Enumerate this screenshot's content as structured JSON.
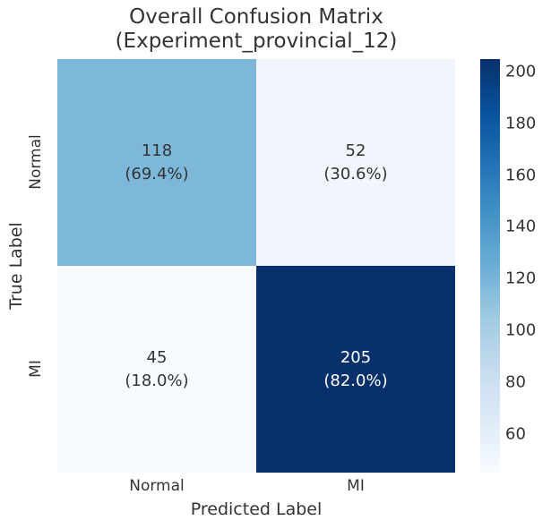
{
  "chart_data": {
    "type": "heatmap",
    "title_line1": "Overall Confusion Matrix",
    "title_line2": "(Experiment_provincial_12)",
    "xlabel": "Predicted Label",
    "ylabel": "True Label",
    "x_tick_labels": [
      "Normal",
      "MI"
    ],
    "y_tick_labels": [
      "Normal",
      "MI"
    ],
    "matrix": [
      [
        118,
        52
      ],
      [
        45,
        205
      ]
    ],
    "percentages": [
      [
        "69.4%",
        "30.6%"
      ],
      [
        "18.0%",
        "82.0%"
      ]
    ],
    "colormap": "Blues",
    "vmin": 45,
    "vmax": 205,
    "colorbar_ticks": [
      60,
      80,
      100,
      120,
      140,
      160,
      180,
      200
    ],
    "legend_position": "right-colorbar",
    "grid": false
  },
  "cells": [
    {
      "row": "Normal",
      "col": "Normal",
      "value": "118",
      "pct": "(69.4%)",
      "bg": "#7db8da",
      "text": "#333333"
    },
    {
      "row": "Normal",
      "col": "MI",
      "value": "52",
      "pct": "(30.6%)",
      "bg": "#f0f6fc",
      "text": "#333333"
    },
    {
      "row": "MI",
      "col": "Normal",
      "value": "45",
      "pct": "(18.0%)",
      "bg": "#f7fbff",
      "text": "#333333"
    },
    {
      "row": "MI",
      "col": "MI",
      "value": "205",
      "pct": "(82.0%)",
      "bg": "#08306b",
      "text": "#ffffff"
    }
  ],
  "colors": {
    "background": "#ffffff",
    "text": "#333333",
    "colormap_min": "#f7fbff",
    "colormap_max": "#08306b"
  }
}
